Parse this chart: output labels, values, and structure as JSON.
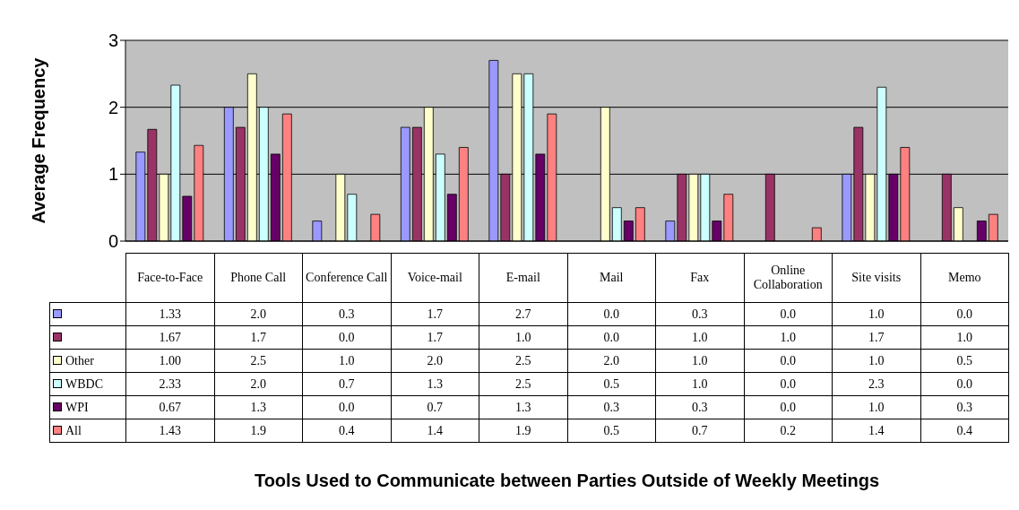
{
  "chart_data": {
    "type": "bar",
    "ylabel": "Average Frequency",
    "annotations": [
      "Tools Used to Communicate between Parties Outside of Weekly Meetings"
    ],
    "categories": [
      "Face-to-Face",
      "Phone Call",
      "Conference Call",
      "Voice-mail",
      "E-mail",
      "Mail",
      "Fax",
      "Online Collaboration",
      "Site visits",
      "Memo"
    ],
    "ylim": [
      0,
      3
    ],
    "yticks": [
      0,
      1,
      2,
      3
    ],
    "grid": "y",
    "legend": "bottom left",
    "series": [
      {
        "name": null,
        "color": "#9999ff",
        "values": [
          1.33,
          2.0,
          0.3,
          1.7,
          2.7,
          0.0,
          0.3,
          0.0,
          1.0,
          0.0
        ],
        "value_labels": [
          "1.33",
          "2.0",
          "0.3",
          "1.7",
          "2.7",
          "0.0",
          "0.3",
          "0.0",
          "1.0",
          "0.0"
        ]
      },
      {
        "name": null,
        "color": "#993366",
        "values": [
          1.67,
          1.7,
          0.0,
          1.7,
          1.0,
          0.0,
          1.0,
          1.0,
          1.7,
          1.0
        ],
        "value_labels": [
          "1.67",
          "1.7",
          "0.0",
          "1.7",
          "1.0",
          "0.0",
          "1.0",
          "1.0",
          "1.7",
          "1.0"
        ]
      },
      {
        "name": "Other",
        "color": "#ffffcc",
        "values": [
          1.0,
          2.5,
          1.0,
          2.0,
          2.5,
          2.0,
          1.0,
          0.0,
          1.0,
          0.5
        ],
        "value_labels": [
          "1.00",
          "2.5",
          "1.0",
          "2.0",
          "2.5",
          "2.0",
          "1.0",
          "0.0",
          "1.0",
          "0.5"
        ]
      },
      {
        "name": "WBDC",
        "color": "#ccffff",
        "values": [
          2.33,
          2.0,
          0.7,
          1.3,
          2.5,
          0.5,
          1.0,
          0.0,
          2.3,
          0.0
        ],
        "value_labels": [
          "2.33",
          "2.0",
          "0.7",
          "1.3",
          "2.5",
          "0.5",
          "1.0",
          "0.0",
          "2.3",
          "0.0"
        ]
      },
      {
        "name": "WPI",
        "color": "#660066",
        "values": [
          0.67,
          1.3,
          0.0,
          0.7,
          1.3,
          0.3,
          0.3,
          0.0,
          1.0,
          0.3
        ],
        "value_labels": [
          "0.67",
          "1.3",
          "0.0",
          "0.7",
          "1.3",
          "0.3",
          "0.3",
          "0.0",
          "1.0",
          "0.3"
        ]
      },
      {
        "name": "All",
        "color": "#ff8080",
        "values": [
          1.43,
          1.9,
          0.4,
          1.4,
          1.9,
          0.5,
          0.7,
          0.2,
          1.4,
          0.4
        ],
        "value_labels": [
          "1.43",
          "1.9",
          "0.4",
          "1.4",
          "1.9",
          "0.5",
          "0.7",
          "0.2",
          "1.4",
          "0.4"
        ]
      }
    ]
  }
}
